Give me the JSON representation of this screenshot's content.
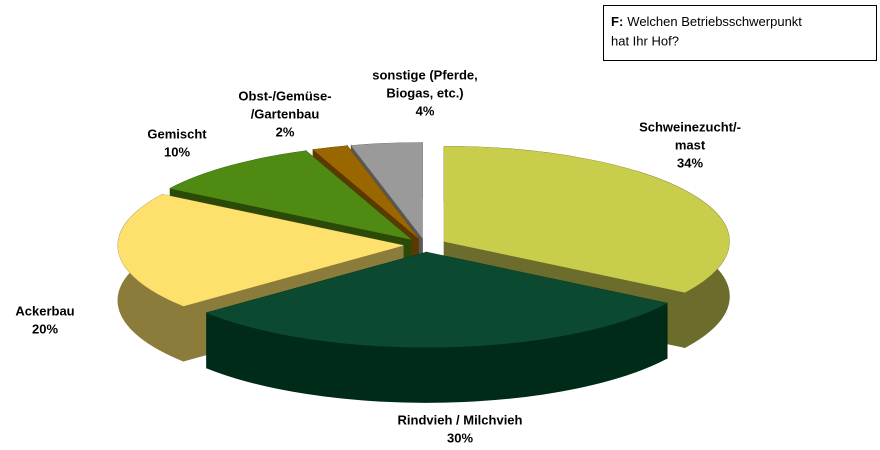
{
  "chart_data": {
    "type": "pie",
    "note_label": "F:",
    "note_lines": [
      "Welchen Betriebsschwerpunkt",
      "hat Ihr Hof?"
    ],
    "categories": [
      [
        "Schweinezucht/-",
        "mast"
      ],
      [
        "Rindvieh / Milchvieh"
      ],
      [
        "Ackerbau"
      ],
      [
        "Gemischt"
      ],
      [
        "Obst-/Gemüse-",
        "/Gartenbau"
      ],
      [
        "sonstige (Pferde,",
        "Biogas, etc.)"
      ]
    ],
    "values": [
      34,
      30,
      20,
      10,
      2,
      4
    ],
    "value_labels": [
      "34%",
      "30%",
      "20%",
      "10%",
      "2%",
      "4%"
    ],
    "colors": [
      "#c9cd4c",
      "#0b4a30",
      "#fde16c",
      "#4f8b12",
      "#9a6600",
      "#9a9a9a"
    ],
    "side_colors": [
      "#6c6c2c",
      "#002b18",
      "#8c7c3c",
      "#2b4a08",
      "#5a3a00",
      "#585858"
    ]
  }
}
